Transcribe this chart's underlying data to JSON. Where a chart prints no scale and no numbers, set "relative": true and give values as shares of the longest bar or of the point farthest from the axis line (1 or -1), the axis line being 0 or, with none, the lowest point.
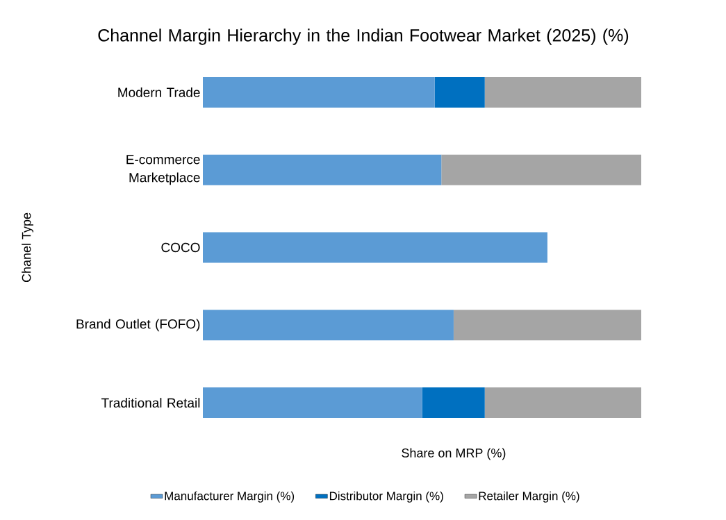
{
  "chart_data": {
    "type": "bar",
    "orientation": "horizontal",
    "stacked": true,
    "relative": true,
    "title": "Channel Margin Hierarchy in the Indian Footwear Market (2025) (%)",
    "xlabel": "Share on MRP (%)",
    "ylabel": "Chanel Type",
    "categories": [
      "Modern Trade",
      "E-commerce Marketplace",
      "COCO",
      "Brand Outlet (FOFO)",
      "Traditional Retail"
    ],
    "series": [
      {
        "name": "Manufacturer Margin (%)",
        "color": "#5b9bd5",
        "values": [
          0.529,
          0.544,
          0.786,
          0.572,
          0.5
        ]
      },
      {
        "name": "Distributor Margin (%)",
        "color": "#0070c0",
        "values": [
          0.114,
          0,
          0,
          0,
          0.143
        ]
      },
      {
        "name": "Retailer Margin (%)",
        "color": "#a5a5a5",
        "values": [
          0.357,
          0.456,
          0,
          0.428,
          0.357
        ]
      }
    ],
    "legend": "bottom"
  }
}
